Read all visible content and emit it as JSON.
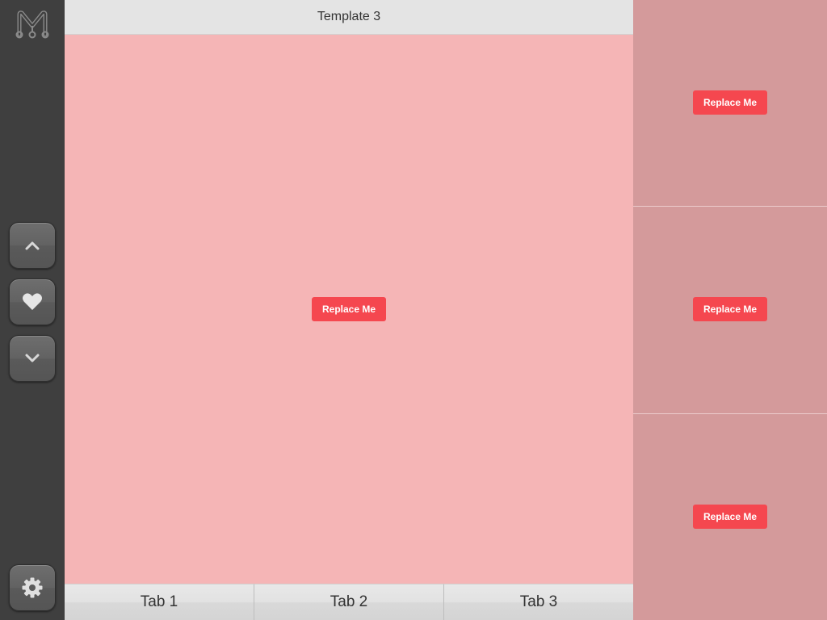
{
  "header": {
    "title": "Template 3"
  },
  "sidebar": {
    "buttons": [
      {
        "icon": "chevron-up-icon"
      },
      {
        "icon": "heart-icon"
      },
      {
        "icon": "chevron-down-icon"
      },
      {
        "icon": "gear-icon"
      }
    ]
  },
  "main": {
    "button_label": "Replace Me"
  },
  "right_panels": [
    {
      "button_label": "Replace Me"
    },
    {
      "button_label": "Replace Me"
    },
    {
      "button_label": "Replace Me"
    }
  ],
  "tabs": [
    {
      "label": "Tab 1"
    },
    {
      "label": "Tab 2"
    },
    {
      "label": "Tab 3"
    }
  ],
  "colors": {
    "sidebar": "#3f3f3f",
    "main_background": "#f5b5b6",
    "right_background": "#d49a9b",
    "button": "#f5474f"
  }
}
